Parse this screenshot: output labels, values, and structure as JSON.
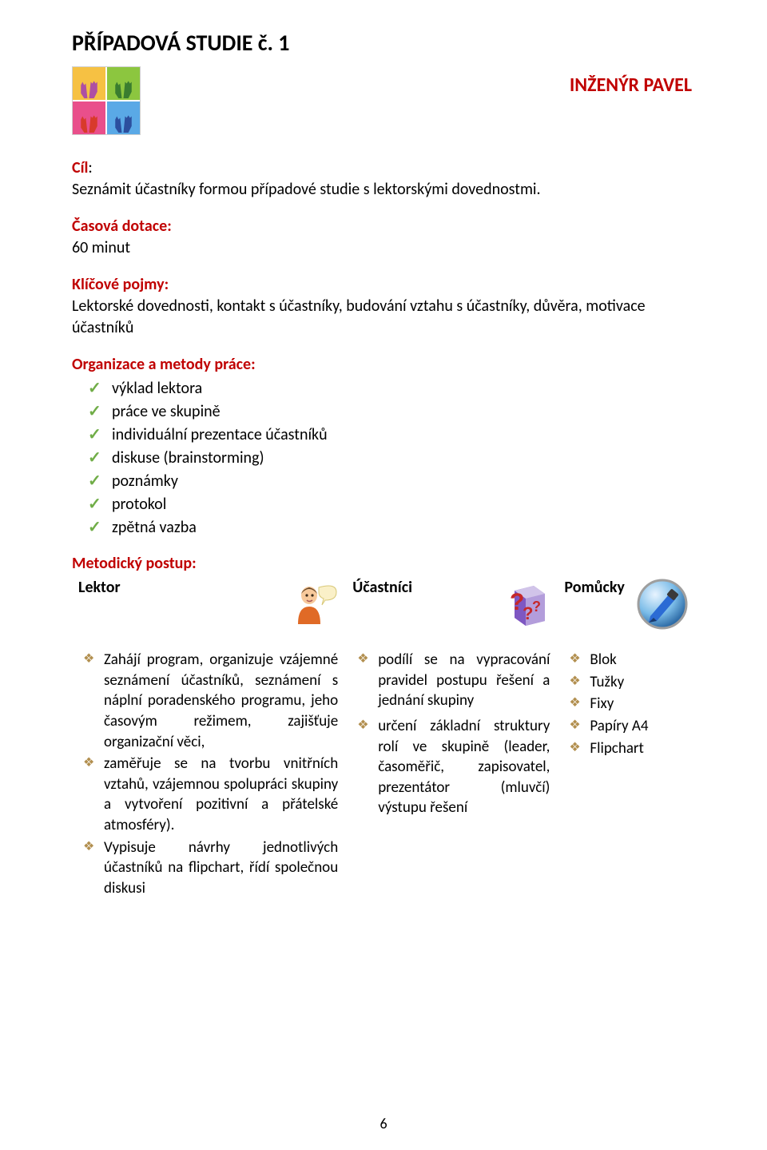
{
  "colors": {
    "accent_red": "#c00000",
    "check_green": "#70ad47",
    "bullet_khaki": "#b28f4f",
    "text": "#000000",
    "background": "#ffffff"
  },
  "typography": {
    "title_size_pt": 21,
    "subtitle_size_pt": 18,
    "body_size_pt": 15,
    "font_family": "Calibri"
  },
  "title": "PŘÍPADOVÁ STUDIE č. 1",
  "subtitle": "INŽENÝR PAVEL",
  "sections": {
    "cil": {
      "label": "Cíl",
      "text": "Seznámit účastníky formou případové studie s lektorskými dovednostmi."
    },
    "casova": {
      "label": "Časová dotace:",
      "text": "60 minut"
    },
    "pojmy": {
      "label": "Klíčové pojmy:",
      "text": "Lektorské dovednosti, kontakt s účastníky, budování vztahu s účastníky, důvěra, motivace účastníků"
    },
    "organizace": {
      "label": "Organizace a metody práce:",
      "items": [
        "výklad lektora",
        "práce ve skupině",
        "individuální prezentace účastníků",
        "diskuse (brainstorming)",
        "poznámky",
        "protokol",
        "zpětná vazba"
      ]
    },
    "postup_label": "Metodický postup:"
  },
  "table": {
    "headers": [
      "Lektor",
      "Účastníci",
      "Pomůcky"
    ],
    "lektor": [
      "Zahájí program, organizuje vzájemné seznámení účastníků, seznámení s náplní poradenského programu, jeho časovým režimem, zajišťuje organizační věci,",
      "zaměřuje se na tvorbu vnitřních vztahů, vzájemnou spolupráci skupiny a vytvoření pozitivní a přátelské atmosféry).",
      "Vypisuje návrhy jednotlivých účastníků na flipchart, řídí společnou diskusi"
    ],
    "ucastnici": [
      "podílí se na vypracování pravidel postupu řešení a jednání skupiny",
      "určení základní struktury rolí ve skupině (leader, časoměřič, zapisovatel, prezentátor (mluvčí) výstupu řešení"
    ],
    "pomucky": [
      "Blok",
      "Tužky",
      "Fixy",
      "Papíry A4",
      "Flipchart"
    ]
  },
  "page_number": "6",
  "hands_colors": {
    "tl_bg": "#f6c143",
    "tl_hand": "#ae4fa3",
    "tr_bg": "#8cc63f",
    "tr_hand": "#3a7d2f",
    "bl_bg": "#e94f8b",
    "bl_hand": "#d83a2b",
    "br_bg": "#5aa9e6",
    "br_hand": "#2c4f9e"
  },
  "header_icons": {
    "lektor": {
      "shirt": "#e06a26",
      "face": "#f7c99b",
      "bubble": "#faf0c8"
    },
    "ucastnici": {
      "block": "#9575cd",
      "qmark": "#c62828"
    },
    "pomucky": {
      "pen_body": "#2b6bd4",
      "ring": "#9e9e9e",
      "bg": "linear"
    }
  }
}
